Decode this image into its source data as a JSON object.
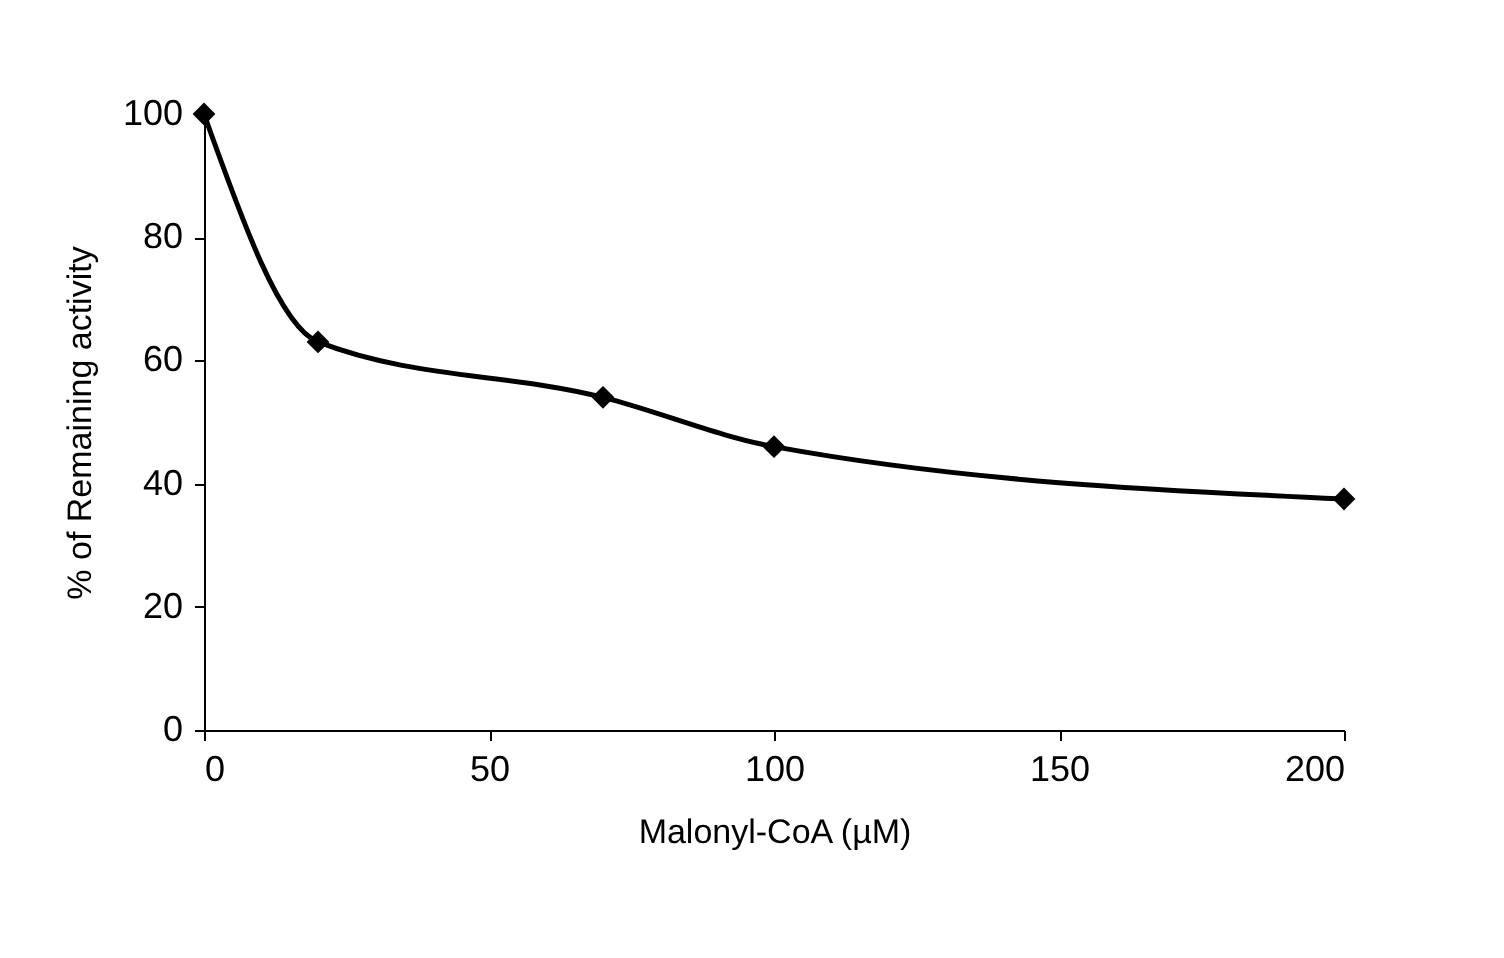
{
  "chart_data": {
    "type": "line",
    "xlabel": "Malonyl-CoA (µM)",
    "ylabel": "% of Remaining activity",
    "x": [
      0,
      20,
      70,
      100,
      200
    ],
    "series": [
      {
        "color": "#000000",
        "values": [
          100,
          63,
          54,
          46,
          37.5
        ]
      }
    ],
    "xlim": [
      0,
      200
    ],
    "xticks": [
      0,
      50,
      100,
      150,
      200
    ],
    "ylim": [
      0,
      100
    ],
    "yticks": [
      0,
      20,
      40,
      60,
      80,
      100
    ],
    "grid": false,
    "marker": "diamond",
    "line_style": "solid"
  }
}
